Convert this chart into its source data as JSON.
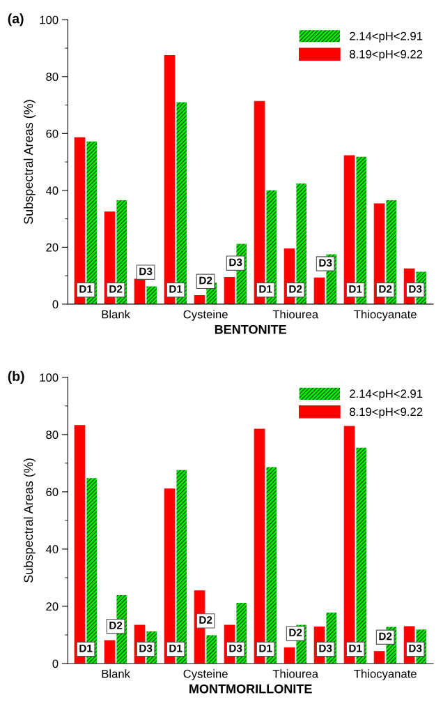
{
  "chart_data": [
    {
      "type": "bar",
      "xlabel": "BENTONITE",
      "ylabel": "Subspectral Areas (%)",
      "categories": [
        null,
        "Blank",
        null,
        null,
        "Cysteine",
        null,
        null,
        "Thiourea",
        null,
        null,
        "Thiocyanate",
        null
      ],
      "series": [
        {
          "name": "8.19<pH<9.22",
          "color": "#ff0000",
          "values": [
            58.5,
            32.4,
            8.8,
            87.4,
            3.0,
            9.4,
            71.3,
            19.4,
            9.2,
            52.2,
            35.3,
            12.4
          ]
        },
        {
          "name": "2.14<pH<2.91",
          "color": "#00ee00",
          "values": [
            57.2,
            36.5,
            6.2,
            71.0,
            7.6,
            21.2,
            40.0,
            42.4,
            17.5,
            51.8,
            36.5,
            11.4
          ]
        }
      ],
      "ylim": [
        0,
        100
      ],
      "yticks": [
        0,
        {
          "value": 10,
          "label": null
        },
        20,
        {
          "value": 30,
          "label": null
        },
        40,
        {
          "value": 50,
          "label": null
        },
        60,
        {
          "value": 70,
          "label": null
        },
        80,
        {
          "value": 90,
          "label": null
        },
        100
      ],
      "annotations": [
        "(a)",
        "D1",
        "D2",
        "D3",
        "D1",
        "D2",
        "D3",
        "D1",
        "D2",
        "D3",
        "D1",
        "D2",
        "D3"
      ],
      "legend": "top right",
      "grid": false
    },
    {
      "type": "bar",
      "xlabel": "MONTMORILLONITE",
      "ylabel": "Subspectral Areas (%)",
      "categories": [
        null,
        "Blank",
        null,
        null,
        "Cysteine",
        null,
        null,
        "Thiourea",
        null,
        null,
        "Thiocyanate",
        null
      ],
      "series": [
        {
          "name": "8.19<pH<9.22",
          "color": "#ff0000",
          "values": [
            83.2,
            8.0,
            13.4,
            61.0,
            25.4,
            13.4,
            81.9,
            5.5,
            12.8,
            82.9,
            4.2,
            12.9
          ]
        },
        {
          "name": "2.14<pH<2.91",
          "color": "#00ee00",
          "values": [
            64.8,
            23.9,
            11.2,
            67.6,
            9.9,
            21.2,
            68.6,
            13.5,
            17.8,
            75.4,
            12.8,
            11.9
          ]
        }
      ],
      "ylim": [
        0,
        100
      ],
      "yticks": [
        0,
        {
          "value": 10,
          "label": null
        },
        20,
        {
          "value": 30,
          "label": null
        },
        40,
        {
          "value": 50,
          "label": null
        },
        60,
        {
          "value": 70,
          "label": null
        },
        80,
        {
          "value": 90,
          "label": null
        },
        100
      ],
      "annotations": [
        "(b)",
        "D1",
        "D2",
        "D3",
        "D1",
        "D2",
        "D3",
        "D1",
        "D2",
        "D3",
        "D1",
        "D2",
        "D3"
      ],
      "legend": "top right",
      "grid": false
    }
  ]
}
